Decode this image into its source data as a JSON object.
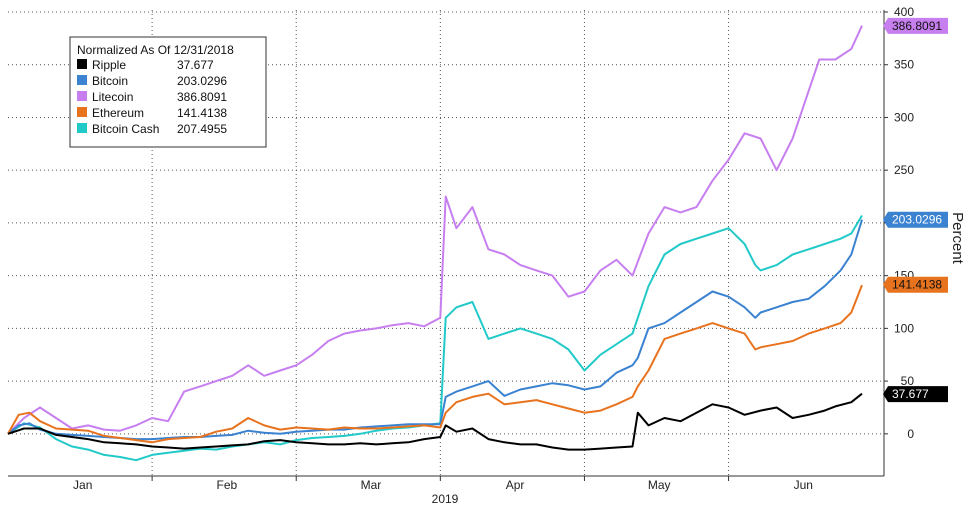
{
  "chart_data": {
    "type": "line",
    "legend": {
      "title": "Normalized As Of 12/31/2018",
      "placement": "top-left"
    },
    "ylabel": "Percent",
    "xlabel": "2019",
    "ylim": [
      -40,
      400
    ],
    "yticks": [
      0,
      50,
      100,
      150,
      200,
      250,
      300,
      350,
      400
    ],
    "x_month_labels": [
      "Jan",
      "Feb",
      "Mar",
      "Apr",
      "May",
      "Jun"
    ],
    "x_range": [
      0,
      160
    ],
    "x_month_centers": [
      14,
      41,
      68,
      95,
      122,
      149
    ],
    "x_month_dividers": [
      27,
      54,
      81,
      108,
      135
    ],
    "grid": true,
    "series": [
      {
        "name": "Ripple",
        "last_label": "37.677",
        "color": "#000000",
        "points": [
          [
            0,
            0
          ],
          [
            3,
            5
          ],
          [
            6,
            5
          ],
          [
            9,
            -1
          ],
          [
            12,
            -3
          ],
          [
            15,
            -5
          ],
          [
            18,
            -8
          ],
          [
            21,
            -9
          ],
          [
            24,
            -10
          ],
          [
            27,
            -12
          ],
          [
            30,
            -13
          ],
          [
            33,
            -14
          ],
          [
            36,
            -13
          ],
          [
            39,
            -12
          ],
          [
            42,
            -11
          ],
          [
            45,
            -10
          ],
          [
            48,
            -7
          ],
          [
            51,
            -6
          ],
          [
            54,
            -8
          ],
          [
            57,
            -9
          ],
          [
            60,
            -10
          ],
          [
            63,
            -10
          ],
          [
            66,
            -9
          ],
          [
            69,
            -10
          ],
          [
            72,
            -9
          ],
          [
            75,
            -8
          ],
          [
            78,
            -5
          ],
          [
            81,
            -3
          ],
          [
            82,
            8
          ],
          [
            84,
            2
          ],
          [
            87,
            5
          ],
          [
            90,
            -5
          ],
          [
            93,
            -8
          ],
          [
            96,
            -10
          ],
          [
            99,
            -10
          ],
          [
            102,
            -13
          ],
          [
            105,
            -15
          ],
          [
            108,
            -15
          ],
          [
            111,
            -14
          ],
          [
            114,
            -13
          ],
          [
            117,
            -12
          ],
          [
            118,
            20
          ],
          [
            120,
            8
          ],
          [
            123,
            15
          ],
          [
            126,
            12
          ],
          [
            129,
            20
          ],
          [
            132,
            28
          ],
          [
            135,
            25
          ],
          [
            138,
            18
          ],
          [
            141,
            22
          ],
          [
            144,
            25
          ],
          [
            147,
            15
          ],
          [
            150,
            18
          ],
          [
            153,
            22
          ],
          [
            155,
            26
          ],
          [
            158,
            30
          ],
          [
            160,
            38
          ]
        ]
      },
      {
        "name": "Bitcoin",
        "last_label": "203.0296",
        "color": "#3b82d1",
        "points": [
          [
            0,
            0
          ],
          [
            2,
            8
          ],
          [
            4,
            10
          ],
          [
            6,
            4
          ],
          [
            9,
            0
          ],
          [
            12,
            -1
          ],
          [
            15,
            -2
          ],
          [
            18,
            -3
          ],
          [
            21,
            -4
          ],
          [
            24,
            -5
          ],
          [
            27,
            -5
          ],
          [
            30,
            -4
          ],
          [
            33,
            -3
          ],
          [
            36,
            -3
          ],
          [
            39,
            -2
          ],
          [
            42,
            -1
          ],
          [
            45,
            3
          ],
          [
            48,
            1
          ],
          [
            51,
            0
          ],
          [
            54,
            2
          ],
          [
            57,
            3
          ],
          [
            60,
            4
          ],
          [
            63,
            4
          ],
          [
            66,
            6
          ],
          [
            69,
            7
          ],
          [
            72,
            8
          ],
          [
            75,
            9
          ],
          [
            78,
            9
          ],
          [
            81,
            9
          ],
          [
            82,
            35
          ],
          [
            84,
            40
          ],
          [
            87,
            45
          ],
          [
            90,
            50
          ],
          [
            93,
            36
          ],
          [
            96,
            42
          ],
          [
            99,
            45
          ],
          [
            102,
            48
          ],
          [
            105,
            46
          ],
          [
            108,
            42
          ],
          [
            111,
            45
          ],
          [
            114,
            58
          ],
          [
            117,
            65
          ],
          [
            118,
            72
          ],
          [
            120,
            100
          ],
          [
            123,
            105
          ],
          [
            126,
            115
          ],
          [
            129,
            125
          ],
          [
            132,
            135
          ],
          [
            135,
            130
          ],
          [
            138,
            120
          ],
          [
            140,
            110
          ],
          [
            141,
            115
          ],
          [
            144,
            120
          ],
          [
            147,
            125
          ],
          [
            150,
            128
          ],
          [
            153,
            140
          ],
          [
            156,
            155
          ],
          [
            158,
            170
          ],
          [
            160,
            203
          ]
        ]
      },
      {
        "name": "Litecoin",
        "last_label": "386.8091",
        "color": "#c77ff0",
        "points": [
          [
            0,
            0
          ],
          [
            3,
            15
          ],
          [
            6,
            25
          ],
          [
            9,
            15
          ],
          [
            12,
            5
          ],
          [
            15,
            8
          ],
          [
            18,
            4
          ],
          [
            21,
            3
          ],
          [
            24,
            8
          ],
          [
            27,
            15
          ],
          [
            30,
            12
          ],
          [
            33,
            40
          ],
          [
            36,
            45
          ],
          [
            39,
            50
          ],
          [
            42,
            55
          ],
          [
            45,
            65
          ],
          [
            48,
            55
          ],
          [
            51,
            60
          ],
          [
            54,
            65
          ],
          [
            57,
            75
          ],
          [
            60,
            88
          ],
          [
            63,
            95
          ],
          [
            66,
            98
          ],
          [
            69,
            100
          ],
          [
            72,
            103
          ],
          [
            75,
            105
          ],
          [
            78,
            102
          ],
          [
            81,
            110
          ],
          [
            82,
            225
          ],
          [
            84,
            195
          ],
          [
            87,
            215
          ],
          [
            90,
            175
          ],
          [
            93,
            170
          ],
          [
            96,
            160
          ],
          [
            99,
            155
          ],
          [
            102,
            150
          ],
          [
            105,
            130
          ],
          [
            108,
            135
          ],
          [
            111,
            155
          ],
          [
            114,
            165
          ],
          [
            117,
            150
          ],
          [
            120,
            190
          ],
          [
            123,
            215
          ],
          [
            126,
            210
          ],
          [
            129,
            215
          ],
          [
            132,
            240
          ],
          [
            135,
            260
          ],
          [
            138,
            285
          ],
          [
            141,
            280
          ],
          [
            144,
            250
          ],
          [
            147,
            280
          ],
          [
            150,
            325
          ],
          [
            152,
            355
          ],
          [
            155,
            355
          ],
          [
            158,
            365
          ],
          [
            160,
            387
          ]
        ]
      },
      {
        "name": "Ethereum",
        "last_label": "141.4138",
        "color": "#e8731e",
        "points": [
          [
            0,
            0
          ],
          [
            2,
            18
          ],
          [
            4,
            20
          ],
          [
            6,
            12
          ],
          [
            9,
            5
          ],
          [
            12,
            4
          ],
          [
            15,
            3
          ],
          [
            18,
            -2
          ],
          [
            21,
            -4
          ],
          [
            24,
            -6
          ],
          [
            27,
            -8
          ],
          [
            30,
            -5
          ],
          [
            33,
            -4
          ],
          [
            36,
            -3
          ],
          [
            39,
            2
          ],
          [
            42,
            5
          ],
          [
            45,
            15
          ],
          [
            48,
            8
          ],
          [
            51,
            4
          ],
          [
            54,
            6
          ],
          [
            57,
            5
          ],
          [
            60,
            4
          ],
          [
            63,
            6
          ],
          [
            66,
            5
          ],
          [
            69,
            5
          ],
          [
            72,
            6
          ],
          [
            75,
            7
          ],
          [
            78,
            8
          ],
          [
            81,
            6
          ],
          [
            82,
            20
          ],
          [
            84,
            30
          ],
          [
            87,
            35
          ],
          [
            90,
            38
          ],
          [
            93,
            28
          ],
          [
            96,
            30
          ],
          [
            99,
            32
          ],
          [
            102,
            28
          ],
          [
            105,
            24
          ],
          [
            108,
            20
          ],
          [
            111,
            22
          ],
          [
            114,
            28
          ],
          [
            117,
            35
          ],
          [
            118,
            45
          ],
          [
            120,
            60
          ],
          [
            123,
            90
          ],
          [
            126,
            95
          ],
          [
            129,
            100
          ],
          [
            132,
            105
          ],
          [
            135,
            100
          ],
          [
            138,
            95
          ],
          [
            140,
            80
          ],
          [
            141,
            82
          ],
          [
            144,
            85
          ],
          [
            147,
            88
          ],
          [
            150,
            95
          ],
          [
            153,
            100
          ],
          [
            156,
            105
          ],
          [
            158,
            115
          ],
          [
            160,
            141
          ]
        ]
      },
      {
        "name": "Bitcoin Cash",
        "last_label": "207.4955",
        "color": "#22c9c9",
        "points": [
          [
            0,
            0
          ],
          [
            3,
            10
          ],
          [
            6,
            6
          ],
          [
            9,
            -5
          ],
          [
            12,
            -12
          ],
          [
            15,
            -15
          ],
          [
            18,
            -20
          ],
          [
            21,
            -22
          ],
          [
            24,
            -25
          ],
          [
            27,
            -20
          ],
          [
            30,
            -18
          ],
          [
            33,
            -16
          ],
          [
            36,
            -14
          ],
          [
            39,
            -15
          ],
          [
            42,
            -12
          ],
          [
            45,
            -10
          ],
          [
            48,
            -8
          ],
          [
            51,
            -10
          ],
          [
            54,
            -6
          ],
          [
            57,
            -4
          ],
          [
            60,
            -3
          ],
          [
            63,
            -2
          ],
          [
            66,
            0
          ],
          [
            69,
            3
          ],
          [
            72,
            5
          ],
          [
            75,
            6
          ],
          [
            78,
            8
          ],
          [
            81,
            10
          ],
          [
            82,
            110
          ],
          [
            84,
            120
          ],
          [
            87,
            125
          ],
          [
            90,
            90
          ],
          [
            93,
            95
          ],
          [
            96,
            100
          ],
          [
            99,
            95
          ],
          [
            102,
            90
          ],
          [
            105,
            80
          ],
          [
            108,
            60
          ],
          [
            111,
            75
          ],
          [
            114,
            85
          ],
          [
            117,
            95
          ],
          [
            118,
            110
          ],
          [
            120,
            140
          ],
          [
            123,
            170
          ],
          [
            126,
            180
          ],
          [
            129,
            185
          ],
          [
            132,
            190
          ],
          [
            135,
            195
          ],
          [
            138,
            180
          ],
          [
            140,
            160
          ],
          [
            141,
            155
          ],
          [
            144,
            160
          ],
          [
            147,
            170
          ],
          [
            150,
            175
          ],
          [
            153,
            180
          ],
          [
            156,
            185
          ],
          [
            158,
            190
          ],
          [
            160,
            207
          ]
        ]
      }
    ],
    "axis_tags": [
      {
        "series": "Litecoin",
        "value": 386.8091,
        "label": "386.8091",
        "color": "#c77ff0",
        "text_color": "#111111"
      },
      {
        "series": "Bitcoin",
        "value": 203.0296,
        "label": "203.0296",
        "color": "#3b82d1",
        "text_color": "#ffffff"
      },
      {
        "series": "Ethereum",
        "value": 141.4138,
        "label": "141.4138",
        "color": "#e8731e",
        "text_color": "#111111"
      },
      {
        "series": "Ripple",
        "value": 37.677,
        "label": "37.677",
        "color": "#000000",
        "text_color": "#ffffff"
      }
    ]
  }
}
